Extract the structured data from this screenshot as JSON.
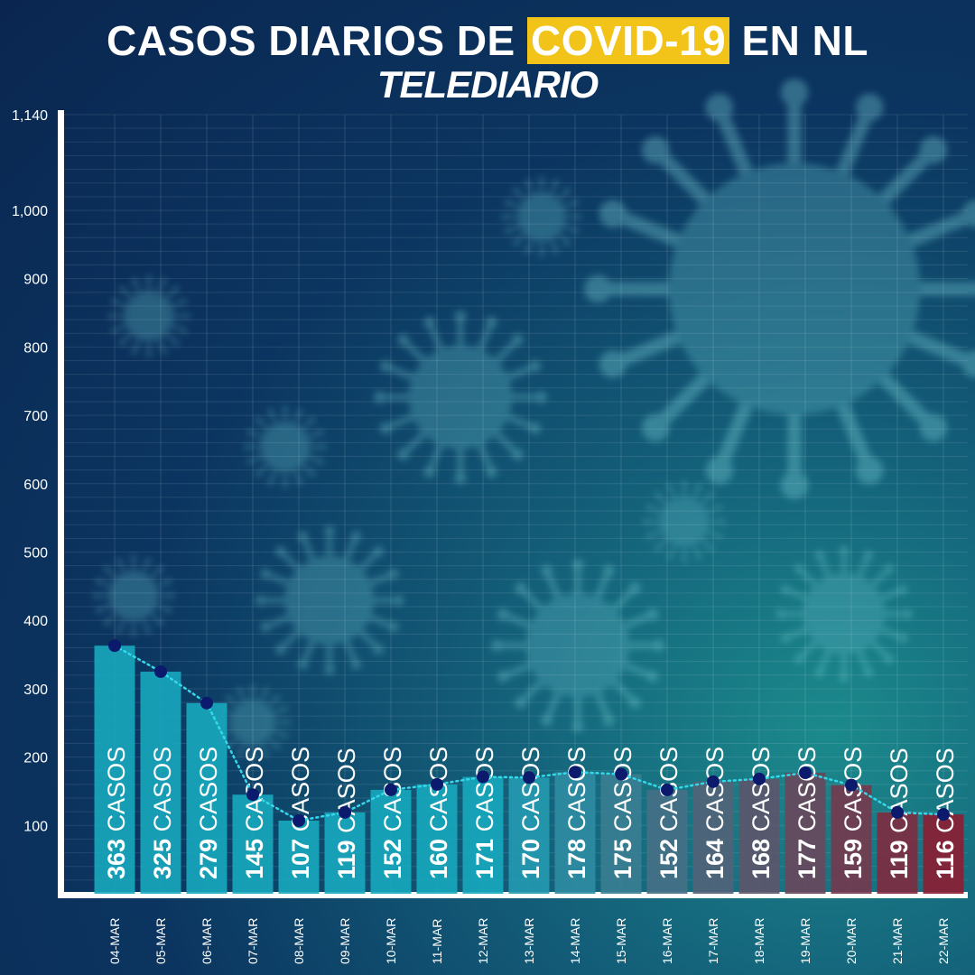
{
  "header": {
    "title_prefix": "CASOS DIARIOS DE ",
    "title_highlight": "COVID-19",
    "title_suffix": " EN NL",
    "brand": "TELEDIARIO"
  },
  "colors": {
    "highlight": "#f2c318",
    "bar_teal": "#17a8be",
    "bar_red": "#8c1d32",
    "marker": "#0c1a6e",
    "trend_line": "#35d8e8"
  },
  "chart_data": {
    "type": "bar",
    "categories": [
      "04-MAR",
      "05-MAR",
      "06-MAR",
      "07-MAR",
      "08-MAR",
      "09-MAR",
      "10-MAR",
      "11-MAR",
      "12-MAR",
      "13-MAR",
      "14-MAR",
      "15-MAR",
      "16-MAR",
      "17-MAR",
      "18-MAR",
      "19-MAR",
      "20-MAR",
      "21-MAR",
      "22-MAR"
    ],
    "values": [
      363,
      325,
      279,
      145,
      107,
      119,
      152,
      160,
      171,
      170,
      178,
      175,
      152,
      164,
      168,
      177,
      159,
      119,
      116
    ],
    "label_suffix": "CASOS",
    "yticks": [
      100,
      200,
      300,
      400,
      500,
      600,
      700,
      800,
      900,
      1000,
      1140
    ],
    "ytick_labels": [
      "100",
      "200",
      "300",
      "400",
      "500",
      "600",
      "700",
      "800",
      "900",
      "1,000",
      "1,140"
    ],
    "ylim": [
      0,
      1140
    ],
    "grid": true,
    "trend_line": true
  }
}
